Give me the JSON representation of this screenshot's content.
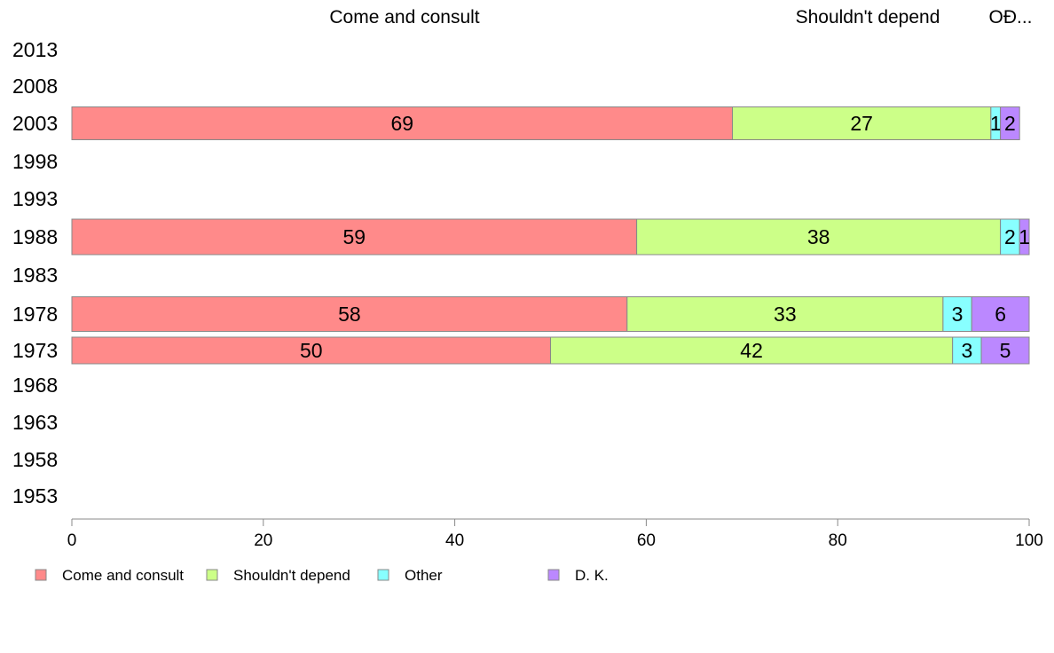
{
  "chart_data": {
    "type": "bar",
    "orientation": "horizontal",
    "stacked": true,
    "title": "",
    "xlabel": "",
    "ylabel": "",
    "xlim": [
      0,
      100
    ],
    "x_ticks": [
      0,
      20,
      40,
      60,
      80,
      100
    ],
    "categories": [
      "2013",
      "2008",
      "2003",
      "1998",
      "1993",
      "1988",
      "1983",
      "1978",
      "1973",
      "1968",
      "1963",
      "1958",
      "1953"
    ],
    "series": [
      {
        "name": "Come and consult",
        "color": "#ff8a8a",
        "values": [
          null,
          null,
          69,
          null,
          null,
          59,
          null,
          58,
          50,
          null,
          null,
          null,
          null
        ]
      },
      {
        "name": "Shouldn't depend",
        "color": "#ccff88",
        "values": [
          null,
          null,
          27,
          null,
          null,
          38,
          null,
          33,
          42,
          null,
          null,
          null,
          null
        ]
      },
      {
        "name": "Other",
        "color": "#88ffff",
        "values": [
          null,
          null,
          1,
          null,
          null,
          2,
          null,
          3,
          3,
          null,
          null,
          null,
          null
        ]
      },
      {
        "name": "D. K.",
        "color": "#bb88ff",
        "values": [
          null,
          null,
          2,
          null,
          null,
          1,
          null,
          6,
          5,
          null,
          null,
          null,
          null
        ]
      }
    ],
    "top_labels": [
      "Come and consult",
      "Shouldn't depend",
      "OĐ..."
    ],
    "legend": {
      "position": "bottom-left",
      "entries": [
        "Come and consult",
        "Shouldn't depend",
        "Other",
        "D. K."
      ]
    },
    "grid": false
  }
}
